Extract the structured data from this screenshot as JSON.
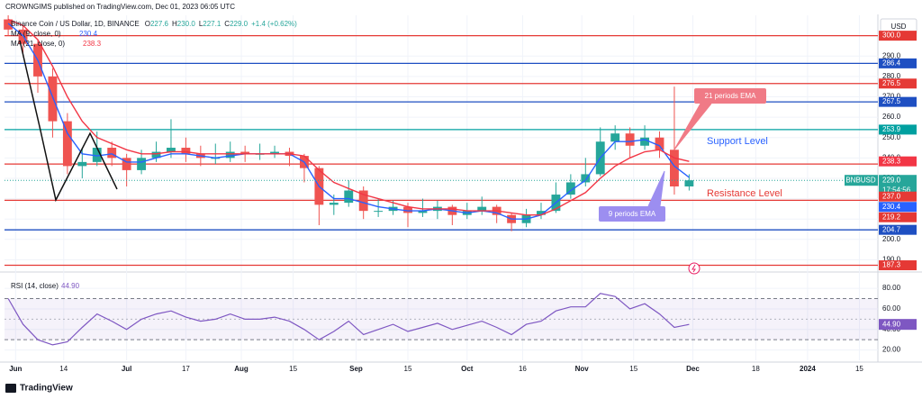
{
  "header": {
    "published": "CROWNGIMS published on TradingView.com, Dec 01, 2023 06:05 UTC",
    "symbol": "Binance Coin / US Dollar, 1D, BINANCE",
    "ohlc": [
      {
        "key": "O",
        "value": "227.6"
      },
      {
        "key": "H",
        "value": "230.0"
      },
      {
        "key": "L",
        "value": "227.1"
      },
      {
        "key": "C",
        "value": "229.0"
      }
    ],
    "change": "+1.4 (+0.62%)",
    "currency": "USD"
  },
  "chart_data": [
    {
      "type": "candlestick",
      "ticker": "BNBUSD",
      "countdown": "17:54:56",
      "last_label": "229.0",
      "x": [
        -2,
        2,
        6,
        10,
        14,
        18,
        22,
        26,
        30,
        34,
        38,
        42,
        46,
        50,
        54,
        58,
        62,
        66,
        70,
        74,
        78,
        82,
        86,
        90,
        94,
        98,
        102,
        106,
        110,
        114,
        118,
        122,
        126,
        130,
        134,
        138,
        142,
        146,
        150,
        154,
        158,
        162,
        166,
        170,
        174,
        178,
        182
      ],
      "open": [
        308,
        303,
        296,
        280,
        258,
        236,
        238,
        245,
        240,
        234,
        240,
        243,
        245,
        242,
        240,
        240,
        243,
        242,
        242,
        243,
        241,
        235,
        217,
        218,
        224,
        214,
        214,
        216,
        213,
        214,
        216,
        212,
        214,
        216,
        212,
        208,
        212,
        214,
        222,
        228,
        232,
        248,
        252,
        246,
        250,
        244,
        226
      ],
      "high": [
        310,
        305,
        298,
        284,
        262,
        245,
        253,
        248,
        242,
        244,
        248,
        259,
        250,
        246,
        247,
        248,
        246,
        247,
        246,
        245,
        242,
        236,
        222,
        229,
        226,
        220,
        219,
        218,
        220,
        219,
        217,
        218,
        221,
        217,
        213,
        215,
        218,
        228,
        232,
        240,
        255,
        256,
        255,
        256,
        253,
        275,
        232
      ],
      "low": [
        300,
        290,
        272,
        250,
        232,
        230,
        236,
        236,
        226,
        232,
        238,
        240,
        238,
        236,
        237,
        238,
        238,
        239,
        240,
        236,
        228,
        207,
        212,
        216,
        210,
        211,
        212,
        206,
        211,
        210,
        207,
        210,
        212,
        208,
        204,
        206,
        210,
        213,
        220,
        226,
        231,
        244,
        240,
        244,
        240,
        222,
        224
      ],
      "close": [
        303,
        296,
        280,
        258,
        236,
        238,
        245,
        240,
        234,
        240,
        243,
        245,
        242,
        240,
        240,
        243,
        242,
        242,
        243,
        241,
        235,
        217,
        218,
        224,
        214,
        214,
        216,
        213,
        214,
        216,
        212,
        214,
        216,
        212,
        208,
        212,
        214,
        222,
        228,
        232,
        248,
        252,
        246,
        250,
        244,
        226,
        229
      ],
      "up_color": "#26a69a",
      "down_color": "#ef5350",
      "series": [
        {
          "name": "MA (9, close, 0)",
          "last_label": "230.4",
          "color": "#2962ff",
          "values": [
            306,
            300,
            288,
            270,
            252,
            242,
            241,
            242,
            238,
            238,
            240,
            242,
            242,
            241,
            240,
            241,
            242,
            242,
            242,
            242,
            238,
            226,
            220,
            220,
            218,
            216,
            215,
            214,
            214,
            215,
            214,
            213,
            214,
            213,
            210,
            210,
            212,
            218,
            224,
            229,
            240,
            248,
            248,
            249,
            246,
            236,
            230.4
          ]
        },
        {
          "name": "MA (21, close, 0)",
          "last_label": "238.3",
          "color": "#f23645",
          "values": [
            308,
            305,
            298,
            285,
            270,
            258,
            250,
            247,
            244,
            242,
            242,
            243,
            243,
            242,
            242,
            242,
            242,
            242,
            242,
            242,
            241,
            234,
            228,
            225,
            222,
            220,
            218,
            216,
            215,
            215,
            215,
            214,
            214,
            214,
            213,
            212,
            212,
            215,
            219,
            223,
            230,
            236,
            240,
            243,
            244,
            240,
            238.3
          ]
        }
      ],
      "levels": [
        {
          "value": 300,
          "label": "300.0",
          "color": "#e53935"
        },
        {
          "value": 286.4,
          "label": "286.4",
          "color": "#1e4fc2"
        },
        {
          "value": 276.5,
          "label": "276.5",
          "color": "#e53935"
        },
        {
          "value": 267.5,
          "label": "267.5",
          "color": "#1e4fc2"
        },
        {
          "value": 253.9,
          "label": "253.9",
          "color": "#00a0a0"
        },
        {
          "value": 237,
          "label": "237.0",
          "color": "#e53935"
        },
        {
          "value": 219.2,
          "label": "219.2",
          "color": "#e53935"
        },
        {
          "value": 204.7,
          "label": "204.7",
          "color": "#1e4fc2"
        },
        {
          "value": 187.3,
          "label": "187.3",
          "color": "#e53935"
        }
      ],
      "annotations": [
        "21 periods EMA",
        "9 periods EMA",
        "Support Level",
        "Resistance Level"
      ],
      "xlim": [
        -3,
        233
      ],
      "ylim": [
        184,
        310
      ],
      "yticks": [
        {
          "value": 190,
          "label": "190.0"
        },
        {
          "value": 200,
          "label": "200.0"
        },
        {
          "value": 210,
          "label": "210.0"
        },
        {
          "value": 220,
          "label": "220.0"
        },
        {
          "value": 230,
          "label": "230.0"
        },
        {
          "value": 240,
          "label": "240.0"
        },
        {
          "value": 250,
          "label": "250.0"
        },
        {
          "value": 260,
          "label": "260.0"
        },
        {
          "value": 270,
          "label": "270.0"
        },
        {
          "value": 280,
          "label": "280.0"
        },
        {
          "value": 290,
          "label": "290.0"
        }
      ],
      "xticks": [
        {
          "value": 0,
          "label": "Jun"
        },
        {
          "value": 13,
          "label": "14"
        },
        {
          "value": 30,
          "label": "Jul"
        },
        {
          "value": 46,
          "label": "17"
        },
        {
          "value": 61,
          "label": "Aug"
        },
        {
          "value": 75,
          "label": "15"
        },
        {
          "value": 92,
          "label": "Sep"
        },
        {
          "value": 106,
          "label": "15"
        },
        {
          "value": 122,
          "label": "Oct"
        },
        {
          "value": 137,
          "label": "16"
        },
        {
          "value": 153,
          "label": "Nov"
        },
        {
          "value": 167,
          "label": "15"
        },
        {
          "value": 183,
          "label": "Dec"
        },
        {
          "value": 200,
          "label": "18"
        },
        {
          "value": 214,
          "label": "2024"
        },
        {
          "value": 228,
          "label": "15"
        }
      ]
    },
    {
      "type": "line",
      "name": "RSI (14, close)",
      "last_label": "44.90",
      "color": "#7e57c2",
      "band": [
        30,
        70
      ],
      "midline": 50,
      "values": [
        70,
        45,
        30,
        25,
        28,
        42,
        55,
        48,
        40,
        50,
        55,
        58,
        52,
        48,
        50,
        55,
        50,
        50,
        52,
        48,
        40,
        30,
        38,
        48,
        35,
        40,
        45,
        38,
        42,
        46,
        40,
        44,
        48,
        42,
        35,
        45,
        48,
        58,
        62,
        62,
        75,
        72,
        60,
        65,
        55,
        42,
        44.9
      ],
      "ylim": [
        10,
        95
      ],
      "yticks": [
        {
          "value": 20,
          "label": "20.00"
        },
        {
          "value": 40,
          "label": "40.00"
        },
        {
          "value": 60,
          "label": "60.00"
        },
        {
          "value": 80,
          "label": "80.00"
        }
      ]
    }
  ],
  "footer": "TradingView"
}
